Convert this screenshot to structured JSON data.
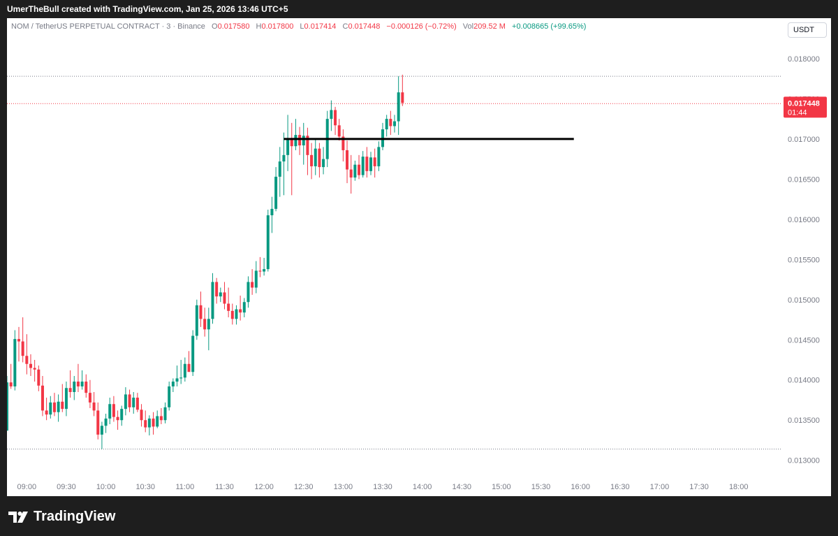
{
  "caption": "UmerTheBull created with TradingView.com, Jan 25, 2026 13:46 UTC+5",
  "legend": {
    "symbol": "NOM / TetherUS PERPETUAL CONTRACT · 3 · Binance",
    "open_label": "O",
    "open": "0.017580",
    "high_label": "H",
    "high": "0.017800",
    "low_label": "L",
    "low": "0.017414",
    "close_label": "C",
    "close": "0.017448",
    "change": "−0.000126 (−0.72%)",
    "vol_label": "Vol",
    "vol": "209.52 M",
    "vol_change": "+0.008665 (+99.65%)"
  },
  "currency": "USDT",
  "brand": "TradingView",
  "colors": {
    "up": "#089981",
    "down": "#f23645",
    "level_line": "#000000",
    "price_badge": "#f23645"
  },
  "price_badge": {
    "price": "0.017448",
    "countdown": "01:44"
  },
  "chart_data": {
    "type": "candlestick",
    "timeframe": "3",
    "y_ticks": [
      "0.018000",
      "0.017500",
      "0.017000",
      "0.016500",
      "0.016000",
      "0.015500",
      "0.015000",
      "0.014500",
      "0.014000",
      "0.013500",
      "0.013000"
    ],
    "ylim": [
      0.01278,
      0.01826
    ],
    "x_ticks": [
      "09:00",
      "09:30",
      "10:00",
      "10:30",
      "11:00",
      "11:30",
      "12:00",
      "12:30",
      "13:00",
      "13:30",
      "14:00",
      "14:30",
      "15:00",
      "15:30",
      "16:00",
      "16:30",
      "17:00",
      "17:30",
      "18:00"
    ],
    "xlim": [
      "08:45",
      "18:33"
    ],
    "last_price": 0.017448,
    "dotted_levels": [
      0.01778,
      0.01744,
      0.01314
    ],
    "horizontal_line": {
      "price": 0.017,
      "from": "12:15",
      "to": "15:55"
    },
    "candles": [
      {
        "t": "08:45",
        "o": 0.01337,
        "h": 0.01405,
        "l": 0.01337,
        "c": 0.01397
      },
      {
        "t": "08:48",
        "o": 0.01397,
        "h": 0.0142,
        "l": 0.01389,
        "c": 0.01392
      },
      {
        "t": "08:51",
        "o": 0.01392,
        "h": 0.01462,
        "l": 0.01387,
        "c": 0.01451
      },
      {
        "t": "08:54",
        "o": 0.01451,
        "h": 0.01466,
        "l": 0.01423,
        "c": 0.01448
      },
      {
        "t": "08:57",
        "o": 0.01448,
        "h": 0.01478,
        "l": 0.01422,
        "c": 0.0143
      },
      {
        "t": "09:00",
        "o": 0.0143,
        "h": 0.01457,
        "l": 0.01407,
        "c": 0.0142
      },
      {
        "t": "09:03",
        "o": 0.0142,
        "h": 0.01432,
        "l": 0.01405,
        "c": 0.01415
      },
      {
        "t": "09:06",
        "o": 0.01415,
        "h": 0.01425,
        "l": 0.01398,
        "c": 0.01413
      },
      {
        "t": "09:09",
        "o": 0.01413,
        "h": 0.01418,
        "l": 0.01386,
        "c": 0.01393
      },
      {
        "t": "09:12",
        "o": 0.01393,
        "h": 0.01405,
        "l": 0.01355,
        "c": 0.01362
      },
      {
        "t": "09:15",
        "o": 0.01362,
        "h": 0.01378,
        "l": 0.0135,
        "c": 0.01357
      },
      {
        "t": "09:18",
        "o": 0.01357,
        "h": 0.0138,
        "l": 0.01352,
        "c": 0.01372
      },
      {
        "t": "09:21",
        "o": 0.01372,
        "h": 0.01384,
        "l": 0.01355,
        "c": 0.0136
      },
      {
        "t": "09:24",
        "o": 0.0136,
        "h": 0.01382,
        "l": 0.01348,
        "c": 0.01373
      },
      {
        "t": "09:27",
        "o": 0.01373,
        "h": 0.01395,
        "l": 0.0136,
        "c": 0.01364
      },
      {
        "t": "09:30",
        "o": 0.01364,
        "h": 0.01398,
        "l": 0.01355,
        "c": 0.0139
      },
      {
        "t": "09:33",
        "o": 0.0139,
        "h": 0.01412,
        "l": 0.01378,
        "c": 0.01385
      },
      {
        "t": "09:36",
        "o": 0.01385,
        "h": 0.01405,
        "l": 0.01375,
        "c": 0.01398
      },
      {
        "t": "09:39",
        "o": 0.01398,
        "h": 0.0142,
        "l": 0.01385,
        "c": 0.01392
      },
      {
        "t": "09:42",
        "o": 0.01392,
        "h": 0.01412,
        "l": 0.01388,
        "c": 0.01398
      },
      {
        "t": "09:45",
        "o": 0.01398,
        "h": 0.01407,
        "l": 0.01378,
        "c": 0.01384
      },
      {
        "t": "09:48",
        "o": 0.01384,
        "h": 0.014,
        "l": 0.01365,
        "c": 0.01372
      },
      {
        "t": "09:51",
        "o": 0.01372,
        "h": 0.01385,
        "l": 0.01355,
        "c": 0.01362
      },
      {
        "t": "09:54",
        "o": 0.01362,
        "h": 0.01372,
        "l": 0.01326,
        "c": 0.01332
      },
      {
        "t": "09:57",
        "o": 0.01332,
        "h": 0.01348,
        "l": 0.01314,
        "c": 0.01343
      },
      {
        "t": "10:00",
        "o": 0.01343,
        "h": 0.01358,
        "l": 0.01334,
        "c": 0.01352
      },
      {
        "t": "10:03",
        "o": 0.01352,
        "h": 0.01378,
        "l": 0.01345,
        "c": 0.0137
      },
      {
        "t": "10:06",
        "o": 0.0137,
        "h": 0.0138,
        "l": 0.01348,
        "c": 0.01354
      },
      {
        "t": "10:09",
        "o": 0.01354,
        "h": 0.01362,
        "l": 0.01338,
        "c": 0.0135
      },
      {
        "t": "10:12",
        "o": 0.0135,
        "h": 0.01368,
        "l": 0.01343,
        "c": 0.01364
      },
      {
        "t": "10:15",
        "o": 0.01364,
        "h": 0.01391,
        "l": 0.01356,
        "c": 0.01382
      },
      {
        "t": "10:18",
        "o": 0.01382,
        "h": 0.01388,
        "l": 0.0136,
        "c": 0.01366
      },
      {
        "t": "10:21",
        "o": 0.01366,
        "h": 0.01385,
        "l": 0.01358,
        "c": 0.01378
      },
      {
        "t": "10:24",
        "o": 0.01378,
        "h": 0.01384,
        "l": 0.0136,
        "c": 0.01363
      },
      {
        "t": "10:27",
        "o": 0.01363,
        "h": 0.0137,
        "l": 0.01342,
        "c": 0.0135
      },
      {
        "t": "10:30",
        "o": 0.0135,
        "h": 0.01362,
        "l": 0.01335,
        "c": 0.01341
      },
      {
        "t": "10:33",
        "o": 0.01341,
        "h": 0.01356,
        "l": 0.01331,
        "c": 0.01352
      },
      {
        "t": "10:36",
        "o": 0.01352,
        "h": 0.0136,
        "l": 0.01332,
        "c": 0.01342
      },
      {
        "t": "10:39",
        "o": 0.01342,
        "h": 0.01362,
        "l": 0.0134,
        "c": 0.01355
      },
      {
        "t": "10:42",
        "o": 0.01355,
        "h": 0.01365,
        "l": 0.01345,
        "c": 0.0135
      },
      {
        "t": "10:45",
        "o": 0.0135,
        "h": 0.01372,
        "l": 0.01346,
        "c": 0.01366
      },
      {
        "t": "10:48",
        "o": 0.01366,
        "h": 0.01398,
        "l": 0.01362,
        "c": 0.01392
      },
      {
        "t": "10:51",
        "o": 0.01392,
        "h": 0.01402,
        "l": 0.01385,
        "c": 0.01398
      },
      {
        "t": "10:54",
        "o": 0.01398,
        "h": 0.01418,
        "l": 0.01392,
        "c": 0.01402
      },
      {
        "t": "10:57",
        "o": 0.01402,
        "h": 0.01425,
        "l": 0.01395,
        "c": 0.01403
      },
      {
        "t": "11:00",
        "o": 0.01403,
        "h": 0.01428,
        "l": 0.01398,
        "c": 0.0142
      },
      {
        "t": "11:03",
        "o": 0.0142,
        "h": 0.01436,
        "l": 0.01412,
        "c": 0.0141
      },
      {
        "t": "11:06",
        "o": 0.0141,
        "h": 0.01462,
        "l": 0.01405,
        "c": 0.01455
      },
      {
        "t": "11:09",
        "o": 0.01455,
        "h": 0.015,
        "l": 0.0145,
        "c": 0.01493
      },
      {
        "t": "11:12",
        "o": 0.01493,
        "h": 0.0151,
        "l": 0.01466,
        "c": 0.01476
      },
      {
        "t": "11:15",
        "o": 0.01476,
        "h": 0.0149,
        "l": 0.01454,
        "c": 0.01463
      },
      {
        "t": "11:18",
        "o": 0.01463,
        "h": 0.0149,
        "l": 0.01437,
        "c": 0.01476
      },
      {
        "t": "11:21",
        "o": 0.01476,
        "h": 0.01533,
        "l": 0.0147,
        "c": 0.01522
      },
      {
        "t": "11:24",
        "o": 0.01522,
        "h": 0.01527,
        "l": 0.01495,
        "c": 0.01504
      },
      {
        "t": "11:27",
        "o": 0.01504,
        "h": 0.01515,
        "l": 0.01497,
        "c": 0.01509
      },
      {
        "t": "11:30",
        "o": 0.01509,
        "h": 0.01522,
        "l": 0.01488,
        "c": 0.01495
      },
      {
        "t": "11:33",
        "o": 0.01495,
        "h": 0.01515,
        "l": 0.01478,
        "c": 0.01486
      },
      {
        "t": "11:36",
        "o": 0.01486,
        "h": 0.01495,
        "l": 0.01469,
        "c": 0.01476
      },
      {
        "t": "11:39",
        "o": 0.01476,
        "h": 0.01493,
        "l": 0.01469,
        "c": 0.01488
      },
      {
        "t": "11:42",
        "o": 0.01488,
        "h": 0.01505,
        "l": 0.01474,
        "c": 0.01484
      },
      {
        "t": "11:45",
        "o": 0.01484,
        "h": 0.01502,
        "l": 0.01478,
        "c": 0.01497
      },
      {
        "t": "11:48",
        "o": 0.01497,
        "h": 0.01529,
        "l": 0.0149,
        "c": 0.01522
      },
      {
        "t": "11:51",
        "o": 0.01522,
        "h": 0.01538,
        "l": 0.01506,
        "c": 0.01515
      },
      {
        "t": "11:54",
        "o": 0.01515,
        "h": 0.01548,
        "l": 0.01508,
        "c": 0.01536
      },
      {
        "t": "11:57",
        "o": 0.01536,
        "h": 0.01553,
        "l": 0.01528,
        "c": 0.01535
      },
      {
        "t": "12:00",
        "o": 0.01535,
        "h": 0.01552,
        "l": 0.0153,
        "c": 0.01538
      },
      {
        "t": "12:03",
        "o": 0.01538,
        "h": 0.01612,
        "l": 0.01535,
        "c": 0.01605
      },
      {
        "t": "12:06",
        "o": 0.01605,
        "h": 0.01628,
        "l": 0.01583,
        "c": 0.01613
      },
      {
        "t": "12:09",
        "o": 0.01613,
        "h": 0.01665,
        "l": 0.0161,
        "c": 0.01653
      },
      {
        "t": "12:12",
        "o": 0.01653,
        "h": 0.0169,
        "l": 0.01628,
        "c": 0.01672
      },
      {
        "t": "12:15",
        "o": 0.01672,
        "h": 0.01708,
        "l": 0.0163,
        "c": 0.0168
      },
      {
        "t": "12:18",
        "o": 0.0168,
        "h": 0.0173,
        "l": 0.0166,
        "c": 0.017
      },
      {
        "t": "12:21",
        "o": 0.017,
        "h": 0.0172,
        "l": 0.0163,
        "c": 0.01691
      },
      {
        "t": "12:24",
        "o": 0.01691,
        "h": 0.01725,
        "l": 0.01686,
        "c": 0.01705
      },
      {
        "t": "12:27",
        "o": 0.01705,
        "h": 0.01715,
        "l": 0.0168,
        "c": 0.01692
      },
      {
        "t": "12:30",
        "o": 0.01692,
        "h": 0.0172,
        "l": 0.01668,
        "c": 0.01704
      },
      {
        "t": "12:33",
        "o": 0.01704,
        "h": 0.01714,
        "l": 0.01655,
        "c": 0.0168
      },
      {
        "t": "12:36",
        "o": 0.0168,
        "h": 0.01695,
        "l": 0.0165,
        "c": 0.01666
      },
      {
        "t": "12:39",
        "o": 0.01666,
        "h": 0.017,
        "l": 0.01655,
        "c": 0.01688
      },
      {
        "t": "12:42",
        "o": 0.01688,
        "h": 0.01695,
        "l": 0.01652,
        "c": 0.01665
      },
      {
        "t": "12:45",
        "o": 0.01665,
        "h": 0.0169,
        "l": 0.01656,
        "c": 0.01675
      },
      {
        "t": "12:48",
        "o": 0.01675,
        "h": 0.01735,
        "l": 0.01665,
        "c": 0.01725
      },
      {
        "t": "12:51",
        "o": 0.01725,
        "h": 0.01748,
        "l": 0.0171,
        "c": 0.01736
      },
      {
        "t": "12:54",
        "o": 0.01736,
        "h": 0.0174,
        "l": 0.01705,
        "c": 0.01717
      },
      {
        "t": "12:57",
        "o": 0.01717,
        "h": 0.01725,
        "l": 0.01698,
        "c": 0.01703
      },
      {
        "t": "13:00",
        "o": 0.01703,
        "h": 0.01712,
        "l": 0.01672,
        "c": 0.01686
      },
      {
        "t": "13:03",
        "o": 0.01686,
        "h": 0.01698,
        "l": 0.01645,
        "c": 0.01662
      },
      {
        "t": "13:06",
        "o": 0.01662,
        "h": 0.0168,
        "l": 0.01632,
        "c": 0.01652
      },
      {
        "t": "13:09",
        "o": 0.01652,
        "h": 0.01673,
        "l": 0.01648,
        "c": 0.01668
      },
      {
        "t": "13:12",
        "o": 0.01668,
        "h": 0.0168,
        "l": 0.0165,
        "c": 0.01655
      },
      {
        "t": "13:15",
        "o": 0.01655,
        "h": 0.01685,
        "l": 0.01652,
        "c": 0.01678
      },
      {
        "t": "13:18",
        "o": 0.01678,
        "h": 0.0169,
        "l": 0.01652,
        "c": 0.0166
      },
      {
        "t": "13:21",
        "o": 0.0166,
        "h": 0.01684,
        "l": 0.01655,
        "c": 0.01677
      },
      {
        "t": "13:24",
        "o": 0.01677,
        "h": 0.01688,
        "l": 0.01652,
        "c": 0.01666
      },
      {
        "t": "13:27",
        "o": 0.01666,
        "h": 0.01697,
        "l": 0.0166,
        "c": 0.0169
      },
      {
        "t": "13:30",
        "o": 0.0169,
        "h": 0.0172,
        "l": 0.01686,
        "c": 0.01712
      },
      {
        "t": "13:33",
        "o": 0.01712,
        "h": 0.0173,
        "l": 0.01703,
        "c": 0.01725
      },
      {
        "t": "13:36",
        "o": 0.01725,
        "h": 0.01735,
        "l": 0.01705,
        "c": 0.01716
      },
      {
        "t": "13:39",
        "o": 0.01716,
        "h": 0.0173,
        "l": 0.01708,
        "c": 0.01722
      },
      {
        "t": "13:42",
        "o": 0.01722,
        "h": 0.01778,
        "l": 0.01705,
        "c": 0.01758
      },
      {
        "t": "13:45",
        "o": 0.01758,
        "h": 0.0178,
        "l": 0.01741,
        "c": 0.01745
      }
    ]
  }
}
